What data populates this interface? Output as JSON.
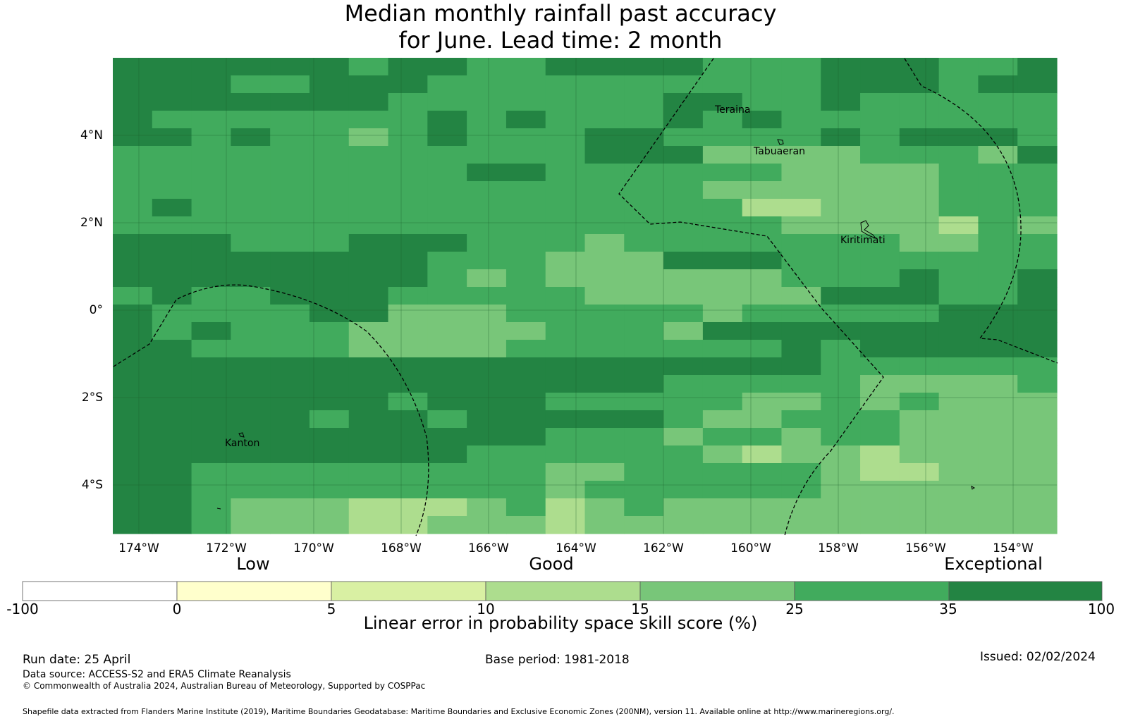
{
  "title": {
    "line1": "Median monthly rainfall past accuracy",
    "line2": "for June. Lead time: 2 month"
  },
  "axes": {
    "lat_labels": [
      "4°N",
      "2°N",
      "0°",
      "2°S",
      "4°S"
    ],
    "lon_labels": [
      "174°W",
      "172°W",
      "170°W",
      "168°W",
      "166°W",
      "164°W",
      "162°W",
      "160°W",
      "158°W",
      "156°W",
      "154°W"
    ]
  },
  "places": {
    "teraina": "Teraina",
    "tabuaeran": "Tabuaeran",
    "kiritimati": "Kiritimati",
    "kanton": "Kanton"
  },
  "colorbar": {
    "categories": [
      "Low",
      "Good",
      "Exceptional"
    ],
    "ticks": [
      "-100",
      "0",
      "5",
      "10",
      "15",
      "25",
      "35",
      "100"
    ],
    "colors": [
      "#ffffff",
      "#ffffcc",
      "#d9f0a3",
      "#addd8e",
      "#78c679",
      "#41ab5d",
      "#238443"
    ],
    "label": "Linear error in probability space skill score (%)"
  },
  "footer": {
    "run_date": "Run date: 25 April",
    "base_period": "Base period: 1981-2018",
    "issued": "Issued: 02/02/2024",
    "data_source": "Data source: ACCESS-S2 and ERA5 Climate Reanalysis",
    "copyright": "© Commonwealth of Australia 2024, Australian Bureau of Meteorology, Supported by COSPPac",
    "shapefile": "Shapefile data extracted from Flanders Marine Institute (2019), Maritime Boundaries Geodatabase: Maritime Boundaries and Exclusive Economic Zones (200NM), version 11. Available online at http://www.marineregions.org/."
  },
  "grid_levels": [
    "666666566556666555666556",
    "666556665555555555666566",
    "666666655555556655655555",
    "655555556565556565555555",
    "665655456555665555656665",
    "555555555555666444455546",
    "555555555665555554444555",
    "555555555555555444444555",
    "565555555555555533444555",
    "555555555555555554444354",
    "666555666555455555554455",
    "666666665554446665555555",
    "666666665454444445556556",
    "565566655555444444666556",
    "655556644455555455555666",
    "656555444445554666666666",
    "665555444455555556566666",
    "666666666666666666555555",
    "666666666666665555544445",
    "666666656665555544545444",
    "666665665666665445554444",
    "666666666665554554554444",
    "666666666555555434434444",
    "665555555554455555433444",
    "665555555554555555444444",
    "665444333453454444444444",
    "665444334443444444444444"
  ]
}
